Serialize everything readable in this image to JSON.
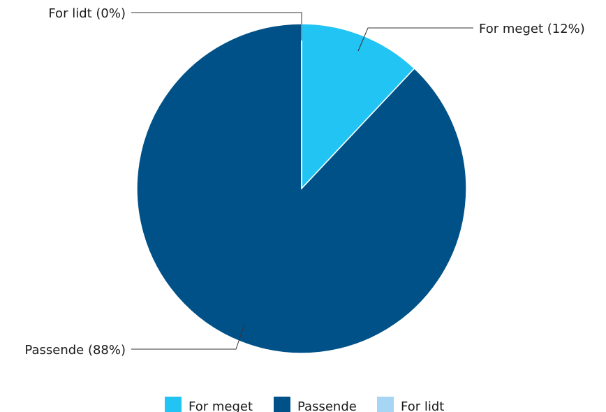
{
  "chart_data": {
    "type": "pie",
    "categories": [
      "For meget",
      "Passende",
      "For lidt"
    ],
    "values": [
      12,
      88,
      0
    ],
    "unit": "%",
    "labels": [
      "For meget (12%)",
      "Passende (88%)",
      "For lidt (0%)"
    ],
    "colors": [
      "#22c4f4",
      "#005187",
      "#a6d6f4"
    ],
    "legend": {
      "placement": "bottom",
      "entries": [
        "For meget",
        "Passende",
        "For lidt"
      ]
    },
    "start_angle": "12 o'clock",
    "direction": "clockwise"
  }
}
